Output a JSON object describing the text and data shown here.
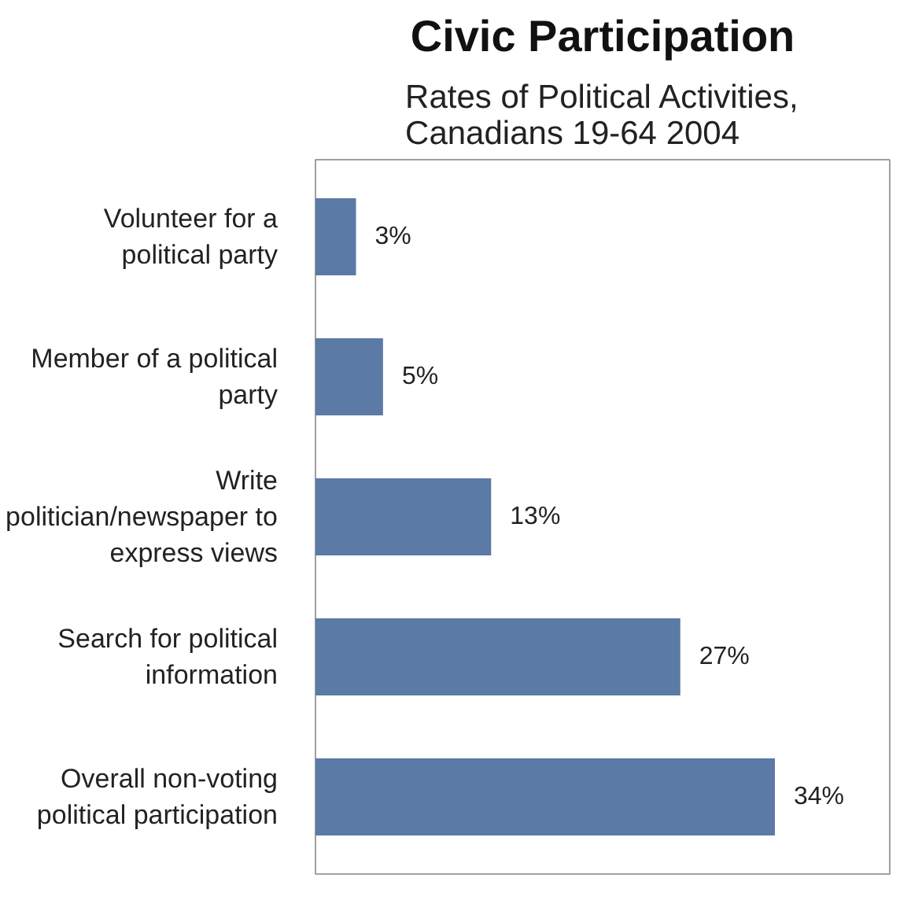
{
  "chart_data": {
    "type": "bar",
    "orientation": "horizontal",
    "title": "Civic Participation",
    "subtitle": "Rates of Political Activities, Canadians 19-64 2004",
    "categories": [
      "Volunteer for a political party",
      "Member of a political party",
      "Write politician/newspaper to express views",
      "Search for political information",
      "Overall non-voting political participation"
    ],
    "values": [
      3,
      5,
      13,
      27,
      34
    ],
    "color": "#5b7aa5",
    "value_labels": [
      "3%",
      "5%",
      "13%",
      "27%",
      "34%"
    ]
  }
}
